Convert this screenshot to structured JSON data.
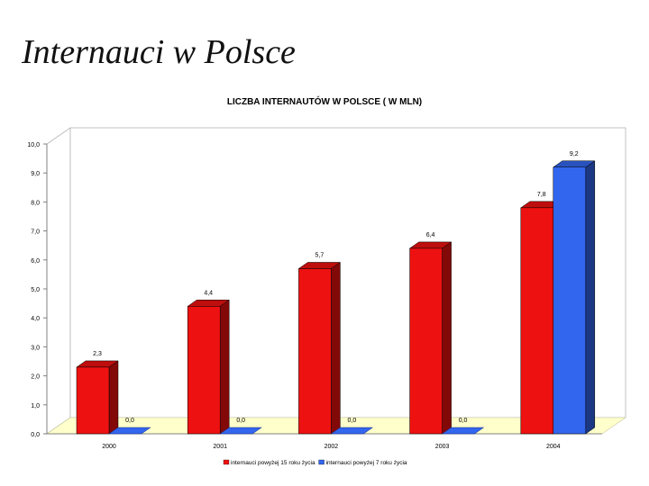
{
  "slide": {
    "title": "Internauci w Polsce"
  },
  "chart_data": {
    "type": "bar",
    "title": "LICZBA INTERNAUTÓW W POLSCE ( W MLN)",
    "categories": [
      "2000",
      "2001",
      "2002",
      "2003",
      "2004"
    ],
    "series": [
      {
        "name": "internauci powyżej 15 roku życia",
        "values": [
          2.3,
          4.4,
          5.7,
          6.4,
          7.8
        ],
        "color": "#ee1111"
      },
      {
        "name": "internauci powyżej 7 roku życia",
        "values": [
          0.0,
          0.0,
          0.0,
          0.0,
          9.2
        ],
        "color": "#3366ee"
      }
    ],
    "value_labels": [
      [
        "2,3",
        "4,4",
        "5,7",
        "6,4",
        "7,8"
      ],
      [
        "0,0",
        "0,0",
        "0,0",
        "0,0",
        "9,2"
      ]
    ],
    "y_ticks": [
      "0,0",
      "1,0",
      "2,0",
      "3,0",
      "4,0",
      "5,0",
      "6,0",
      "7,0",
      "8,0",
      "9,0",
      "10,0"
    ],
    "ylim": [
      0,
      10
    ],
    "legend_position": "bottom",
    "grid": false,
    "style": "3d",
    "floor_color": "#ffffcc"
  }
}
